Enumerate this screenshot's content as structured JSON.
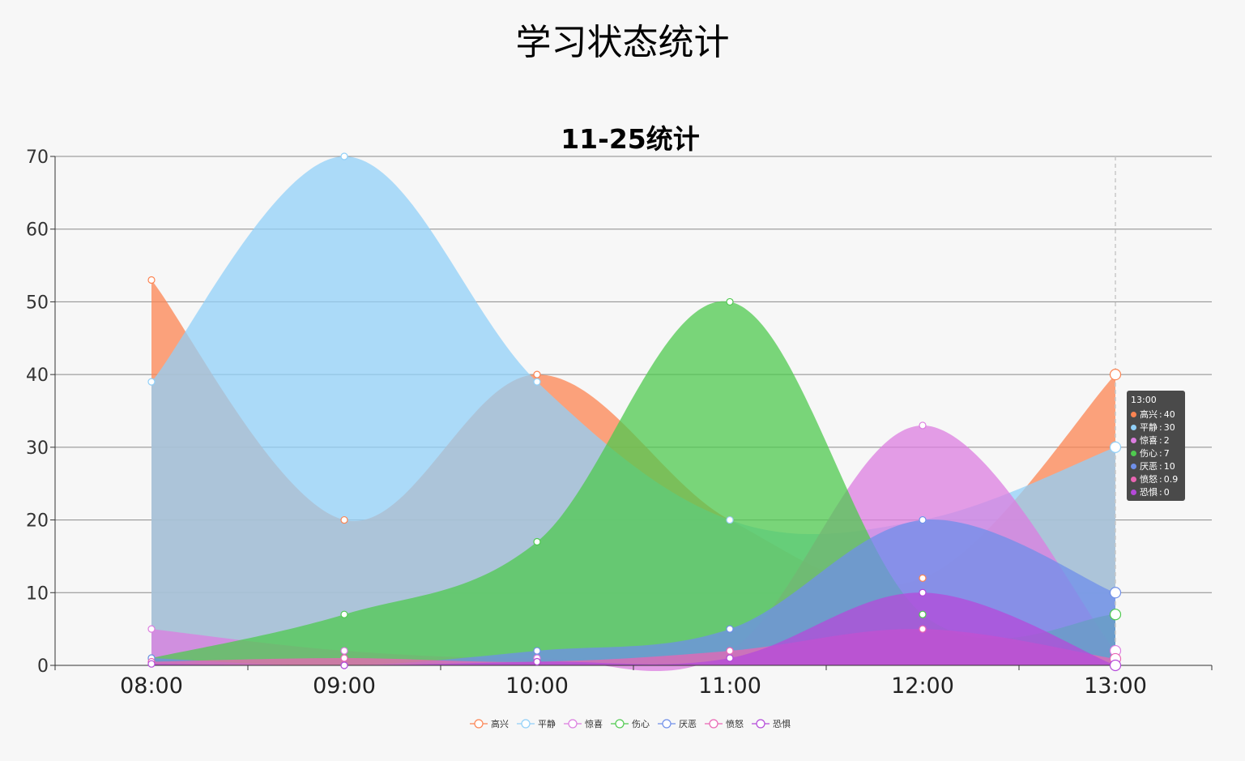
{
  "page": {
    "title": "学习状态统计"
  },
  "chart_data": {
    "type": "area",
    "title": "11-25统计",
    "xlabel": "",
    "ylabel": "",
    "categories": [
      "08:00",
      "09:00",
      "10:00",
      "11:00",
      "12:00",
      "13:00"
    ],
    "ylim": [
      0,
      70
    ],
    "yticks": [
      0,
      10,
      20,
      30,
      40,
      50,
      60,
      70
    ],
    "grid": true,
    "legend": "bottom-center",
    "smooth": true,
    "series": [
      {
        "name": "高兴",
        "color": "#fc8452",
        "values": [
          53,
          20,
          40,
          20,
          12,
          40
        ]
      },
      {
        "name": "平静",
        "color": "#91d0f8",
        "values": [
          39,
          70,
          39,
          20,
          20,
          30
        ]
      },
      {
        "name": "惊喜",
        "color": "#dc7de0",
        "values": [
          5,
          2,
          1,
          2,
          33,
          2
        ]
      },
      {
        "name": "伤心",
        "color": "#4fca4f",
        "values": [
          1,
          7,
          17,
          50,
          7,
          7
        ]
      },
      {
        "name": "厌恶",
        "color": "#6f8fe9",
        "values": [
          1,
          0,
          2,
          5,
          20,
          10
        ]
      },
      {
        "name": "愤怒",
        "color": "#ea66b4",
        "values": [
          0.5,
          1,
          0.5,
          2,
          5,
          0.9
        ]
      },
      {
        "name": "恐惧",
        "color": "#b449d9",
        "values": [
          0.2,
          0,
          0.5,
          1,
          10,
          0
        ]
      }
    ],
    "tooltip": {
      "time": "13:00",
      "rows": [
        {
          "name": "高兴",
          "value": "40",
          "color": "#fc8452"
        },
        {
          "name": "平静",
          "value": "30",
          "color": "#91d0f8"
        },
        {
          "name": "惊喜",
          "value": "2",
          "color": "#dc7de0"
        },
        {
          "name": "伤心",
          "value": "7",
          "color": "#4fca4f"
        },
        {
          "name": "厌恶",
          "value": "10",
          "color": "#6f8fe9"
        },
        {
          "name": "愤怒",
          "value": "0.9",
          "color": "#ea66b4"
        },
        {
          "name": "恐惧",
          "value": "0",
          "color": "#b449d9"
        }
      ]
    }
  }
}
